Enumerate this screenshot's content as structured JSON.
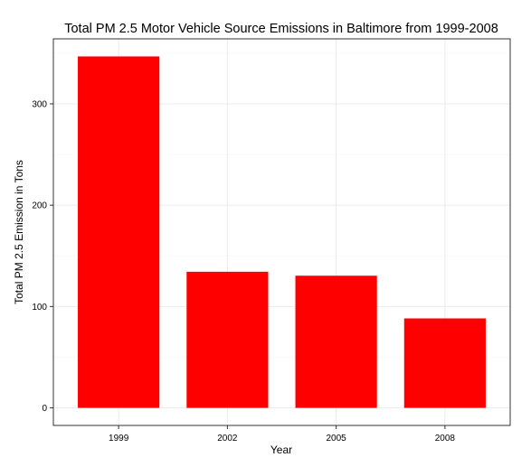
{
  "chart_data": {
    "type": "bar",
    "title": "Total PM 2.5 Motor Vehicle Source Emissions in Baltimore from 1999-2008",
    "xlabel": "Year",
    "ylabel": "Total PM 2.5 Emission in Tons",
    "categories": [
      "1999",
      "2002",
      "2005",
      "2008"
    ],
    "values": [
      346.82,
      134.31,
      130.43,
      88.28
    ],
    "ylim": [
      -17.34,
      364.16
    ],
    "yticks": [
      0,
      100,
      200,
      300
    ],
    "grid": true,
    "legend": "none",
    "bar_color": "#ff0000",
    "grid_major_color": "#ebebeb",
    "grid_minor_color": "#f7f7f7",
    "panel_border_color": "#333333"
  }
}
